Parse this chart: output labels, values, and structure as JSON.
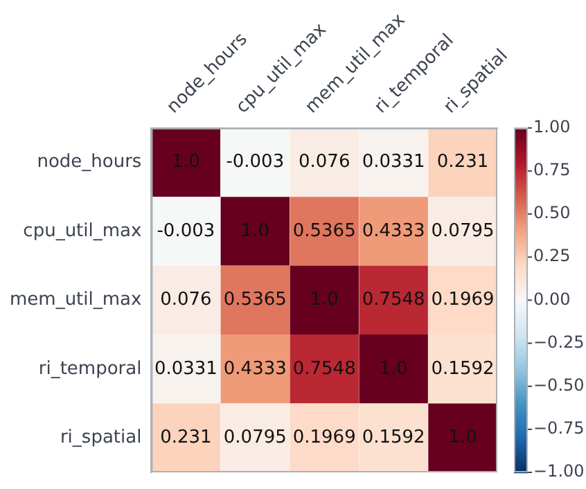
{
  "chart_data": {
    "type": "heatmap",
    "categories": [
      "node_hours",
      "cpu_util_max",
      "mem_util_max",
      "ri_temporal",
      "ri_spatial"
    ],
    "y_categories": [
      "node_hours",
      "cpu_util_max",
      "mem_util_max",
      "ri_temporal",
      "ri_spatial"
    ],
    "cells": [
      [
        1,
        -0.003,
        0.076,
        0.0331,
        0.231
      ],
      [
        -0.003,
        1,
        0.5365,
        0.4333,
        0.0795
      ],
      [
        0.076,
        0.5365,
        1,
        0.7548,
        0.1969
      ],
      [
        0.0331,
        0.4333,
        0.7548,
        1,
        0.1592
      ],
      [
        0.231,
        0.0795,
        0.1969,
        0.1592,
        1
      ]
    ],
    "cell_labels": [
      [
        "1.0",
        "-0.003",
        "0.076",
        "0.0331",
        "0.231"
      ],
      [
        "-0.003",
        "1.0",
        "0.5365",
        "0.4333",
        "0.0795"
      ],
      [
        "0.076",
        "0.5365",
        "1.0",
        "0.7548",
        "0.1969"
      ],
      [
        "0.0331",
        "0.4333",
        "0.7548",
        "1.0",
        "0.1592"
      ],
      [
        "0.231",
        "0.0795",
        "0.1969",
        "0.1592",
        "1.0"
      ]
    ],
    "clim": [
      -1,
      1
    ],
    "cticks": [
      {
        "value": 1,
        "label": "1.00"
      },
      {
        "value": 0.75,
        "label": "0.75"
      },
      {
        "value": 0.5,
        "label": "0.50"
      },
      {
        "value": 0.25,
        "label": "0.25"
      },
      {
        "value": 0,
        "label": "0.00"
      },
      {
        "value": -0.25,
        "label": "−0.25"
      },
      {
        "value": -0.5,
        "label": "−0.50"
      },
      {
        "value": -0.75,
        "label": "−0.75"
      },
      {
        "value": -1,
        "label": "−1.00"
      }
    ]
  }
}
